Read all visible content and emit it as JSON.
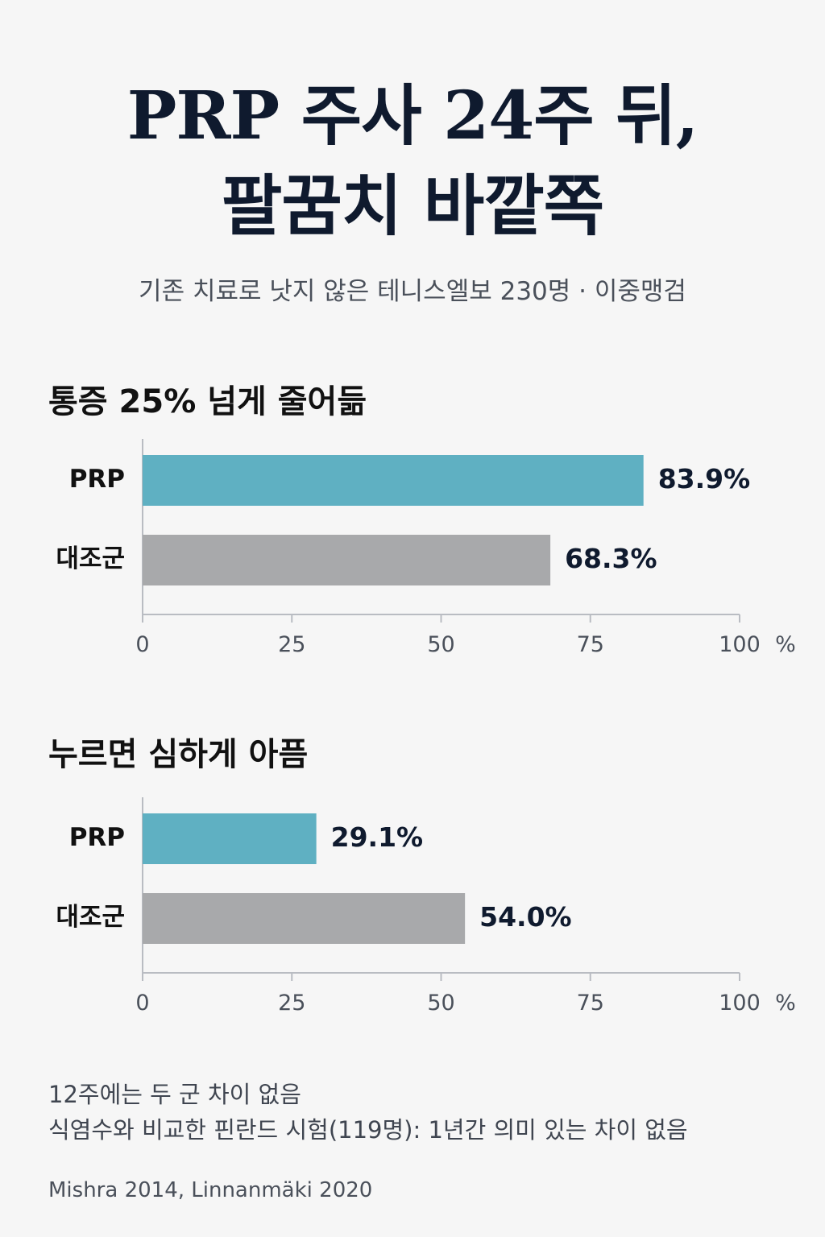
{
  "title": {
    "line1": "PRP 주사 24주 뒤,",
    "line2": "팔꿈치 바깥쪽"
  },
  "subtitle": "기존 치료로 낫지 않은 테니스엘보 230명 · 이중맹검",
  "colors": {
    "prp": "#5fb0c2",
    "control": "#a8a9ab",
    "axis": "#b9bcc2",
    "value_text": "#0f1a2e"
  },
  "chart_data": [
    {
      "type": "bar",
      "orientation": "horizontal",
      "title": "통증 25% 넘게 줄어듦",
      "categories": [
        "PRP",
        "대조군"
      ],
      "values": [
        83.9,
        68.3
      ],
      "value_labels": [
        "83.9%",
        "68.3%"
      ],
      "xlim": [
        0,
        100
      ],
      "xticks": [
        0,
        25,
        50,
        75,
        100
      ],
      "xunit": "%",
      "grid": false
    },
    {
      "type": "bar",
      "orientation": "horizontal",
      "title": "누르면 심하게 아픔",
      "categories": [
        "PRP",
        "대조군"
      ],
      "values": [
        29.1,
        54.0
      ],
      "value_labels": [
        "29.1%",
        "54.0%"
      ],
      "xlim": [
        0,
        100
      ],
      "xticks": [
        0,
        25,
        50,
        75,
        100
      ],
      "xunit": "%",
      "grid": false
    }
  ],
  "footnotes": [
    "12주에는 두 군 차이 없음",
    "식염수와 비교한 핀란드 시험(119명): 1년간 의미 있는 차이 없음"
  ],
  "source": "Mishra 2014, Linnanmäki 2020"
}
